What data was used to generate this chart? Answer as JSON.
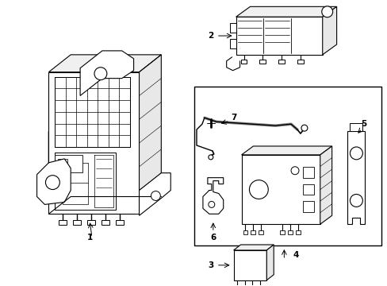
{
  "background_color": "#ffffff",
  "line_color": "#000000",
  "lw": 0.8,
  "fig_width": 4.89,
  "fig_height": 3.6,
  "dpi": 100
}
